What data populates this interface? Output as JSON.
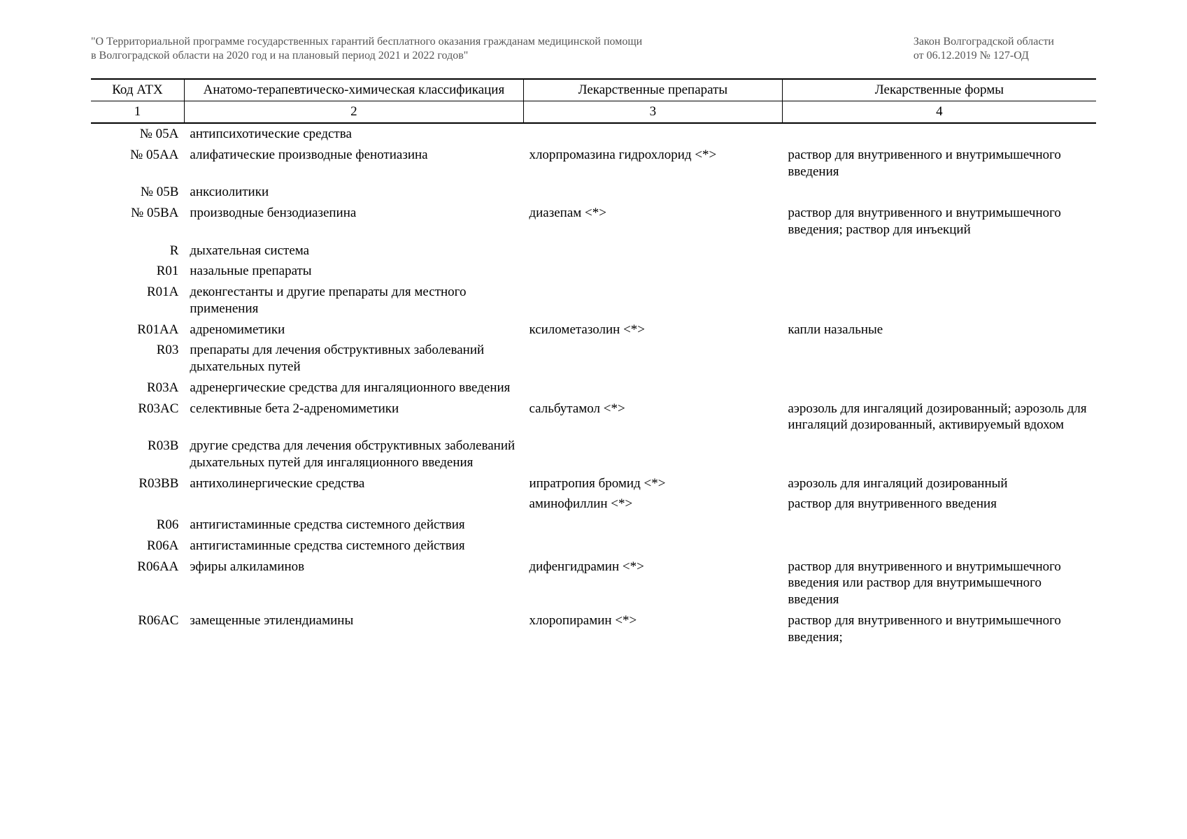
{
  "header": {
    "left_line1": "\"О Территориальной программе государственных гарантий бесплатного оказания гражданам медицинской помощи",
    "left_line2": "в Волгоградской области на 2020 год и на плановый период 2021 и 2022 годов\"",
    "right_line1": "Закон Волгоградской области",
    "right_line2": "от 06.12.2019 № 127-ОД"
  },
  "columns": {
    "h1": "Код АТХ",
    "h2": "Анатомо-терапевтическо-химическая классификация",
    "h3": "Лекарственные препараты",
    "h4": "Лекарственные формы",
    "n1": "1",
    "n2": "2",
    "n3": "3",
    "n4": "4"
  },
  "rows": [
    {
      "code": "№ 05A",
      "cls": "антипсихотические средства",
      "drug": "",
      "form": ""
    },
    {
      "code": "№ 05AA",
      "cls": "алифатические производные фенотиазина",
      "drug": "хлорпромазина гидрохлорид <*>",
      "form": "раствор для внутривенного и внутримышечного введения"
    },
    {
      "code": "№ 05B",
      "cls": "анксиолитики",
      "drug": "",
      "form": ""
    },
    {
      "code": "№ 05BA",
      "cls": "производные бензодиазепина",
      "drug": "диазепам <*>",
      "form": "раствор для внутривенного и внутримышечного введения; раствор для инъекций"
    },
    {
      "code": "R",
      "cls": "дыхательная система",
      "drug": "",
      "form": ""
    },
    {
      "code": "R01",
      "cls": "назальные препараты",
      "drug": "",
      "form": ""
    },
    {
      "code": "R01A",
      "cls": "деконгестанты и другие препараты для местного применения",
      "drug": "",
      "form": ""
    },
    {
      "code": "R01AA",
      "cls": "адреномиметики",
      "drug": "ксилометазолин <*>",
      "form": "капли назальные"
    },
    {
      "code": "R03",
      "cls": "препараты для лечения обструктивных заболеваний дыхательных путей",
      "drug": "",
      "form": ""
    },
    {
      "code": "R03A",
      "cls": "адренергические средства для ингаляционного введения",
      "drug": "",
      "form": ""
    },
    {
      "code": "R03AC",
      "cls": "селективные бета 2-адреномиметики",
      "drug": "сальбутамол <*>",
      "form": "аэрозоль для ингаляций дозированный; аэрозоль для ингаляций дозированный, активируемый вдохом"
    },
    {
      "code": "R03B",
      "cls": "другие средства для лечения обструктивных заболеваний дыхательных путей для ингаляционного введения",
      "drug": "",
      "form": ""
    },
    {
      "code": "R03BB",
      "cls": "антихолинергические средства",
      "drug": "ипратропия бромид <*>",
      "form": "аэрозоль для ингаляций дозированный"
    },
    {
      "code": "",
      "cls": "",
      "drug": "аминофиллин <*>",
      "form": "раствор для внутривенного введения"
    },
    {
      "code": "R06",
      "cls": "антигистаминные средства системного действия",
      "drug": "",
      "form": ""
    },
    {
      "code": "R06A",
      "cls": "антигистаминные средства системного действия",
      "drug": "",
      "form": ""
    },
    {
      "code": "R06AA",
      "cls": "эфиры алкиламинов",
      "drug": "дифенгидрамин <*>",
      "form": "раствор для внутривенного и внутримышечного введения или раствор для внутримышечного введения"
    },
    {
      "code": "R06AC",
      "cls": "замещенные этилендиамины",
      "drug": "хлоропирамин <*>",
      "form": "раствор для внутривенного и внутримышечного введения;"
    }
  ]
}
